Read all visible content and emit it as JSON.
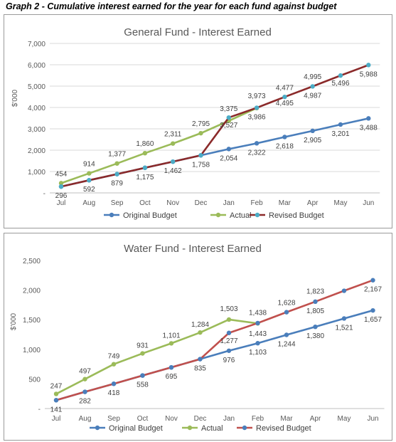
{
  "caption": "Graph 2 - Cumulative interest earned for the year for each fund against budget",
  "chart_data": [
    {
      "type": "line",
      "title": "General Fund - Interest Earned",
      "ylabel": "$'000",
      "xlabel": "",
      "ylim": [
        0,
        7000
      ],
      "yticks": [
        "-",
        "1,000",
        "2,000",
        "3,000",
        "4,000",
        "5,000",
        "6,000",
        "7,000"
      ],
      "categories": [
        "Jul",
        "Aug",
        "Sep",
        "Oct",
        "Nov",
        "Dec",
        "Jan",
        "Feb",
        "Mar",
        "Apr",
        "May",
        "Jun"
      ],
      "grid": true,
      "legend": "bottom",
      "series": [
        {
          "name": "Original Budget",
          "color": "#4a7ebb",
          "marker": "#4a7ebb",
          "values": [
            296,
            592,
            879,
            1175,
            1462,
            1758,
            2054,
            2322,
            2618,
            2905,
            3201,
            3488
          ],
          "labels": [
            "296",
            "592",
            "879",
            "1,175",
            "1,462",
            "1,758",
            "2,054",
            "2,322",
            "2,618",
            "2,905",
            "3,201",
            "3,488"
          ]
        },
        {
          "name": "Actual",
          "color": "#9bbb59",
          "marker": "#9bbb59",
          "values": [
            454,
            914,
            1377,
            1860,
            2311,
            2795,
            3375,
            3973,
            null,
            null,
            null,
            null
          ],
          "labels": [
            "454",
            "914",
            "1,377",
            "1,860",
            "2,311",
            "2,795",
            "3,375",
            "3,973",
            "",
            "",
            "",
            ""
          ]
        },
        {
          "name": "Revised Budget",
          "color": "#8b2a2a",
          "marker": "#4bacc6",
          "values": [
            296,
            592,
            879,
            1175,
            1462,
            1758,
            3527,
            3986,
            4495,
            4987,
            5496,
            5988
          ],
          "labels": [
            "",
            "",
            "",
            "",
            "",
            "",
            "3,527",
            "3,986",
            "4,495",
            "4,987",
            "5,496",
            "5,988"
          ]
        },
        {
          "name": "",
          "color": "none",
          "marker": "none",
          "values": [
            null,
            null,
            null,
            null,
            null,
            null,
            null,
            null,
            4477,
            4995,
            null,
            null
          ],
          "labels": [
            "",
            "",
            "",
            "",
            "",
            "",
            "",
            "",
            "4,477",
            "4,995",
            "",
            ""
          ]
        }
      ]
    },
    {
      "type": "line",
      "title": "Water Fund - Interest Earned",
      "ylabel": "$'000",
      "xlabel": "",
      "ylim": [
        0,
        2500
      ],
      "yticks": [
        "-",
        "500",
        "1,000",
        "1,500",
        "2,000",
        "2,500"
      ],
      "categories": [
        "Jul",
        "Aug",
        "Sep",
        "Oct",
        "Nov",
        "Dec",
        "Jan",
        "Feb",
        "Mar",
        "Apr",
        "May",
        "Jun"
      ],
      "grid": false,
      "legend": "bottom",
      "series": [
        {
          "name": "Original Budget",
          "color": "#4a7ebb",
          "marker": "#4a7ebb",
          "values": [
            141,
            282,
            418,
            558,
            695,
            835,
            976,
            1103,
            1244,
            1380,
            1521,
            1657
          ],
          "labels": [
            "141",
            "282",
            "418",
            "558",
            "695",
            "835",
            "976",
            "1,103",
            "1,244",
            "1,380",
            "1,521",
            "1,657"
          ]
        },
        {
          "name": "Actual",
          "color": "#9bbb59",
          "marker": "#9bbb59",
          "values": [
            247,
            497,
            749,
            931,
            1101,
            1284,
            1503,
            1438,
            null,
            null,
            null,
            null
          ],
          "labels": [
            "247",
            "497",
            "749",
            "931",
            "1,101",
            "1,284",
            "1,503",
            "1,438",
            "",
            "",
            "",
            ""
          ]
        },
        {
          "name": "Revised Budget",
          "color": "#c0504d",
          "marker": "#4a7ebb",
          "values": [
            141,
            282,
            418,
            558,
            695,
            835,
            1277,
            1443,
            1627,
            1805,
            1989,
            2167
          ],
          "labels": [
            "",
            "",
            "",
            "",
            "",
            "",
            "1,277",
            "1,443",
            "",
            "1,805",
            "",
            "2,167"
          ]
        },
        {
          "name": "",
          "color": "none",
          "marker": "none",
          "values": [
            null,
            null,
            null,
            null,
            null,
            null,
            null,
            null,
            1628,
            1823,
            null,
            null
          ],
          "labels": [
            "",
            "",
            "",
            "",
            "",
            "",
            "",
            "",
            "1,628",
            "1,823",
            "",
            ""
          ]
        }
      ]
    }
  ]
}
